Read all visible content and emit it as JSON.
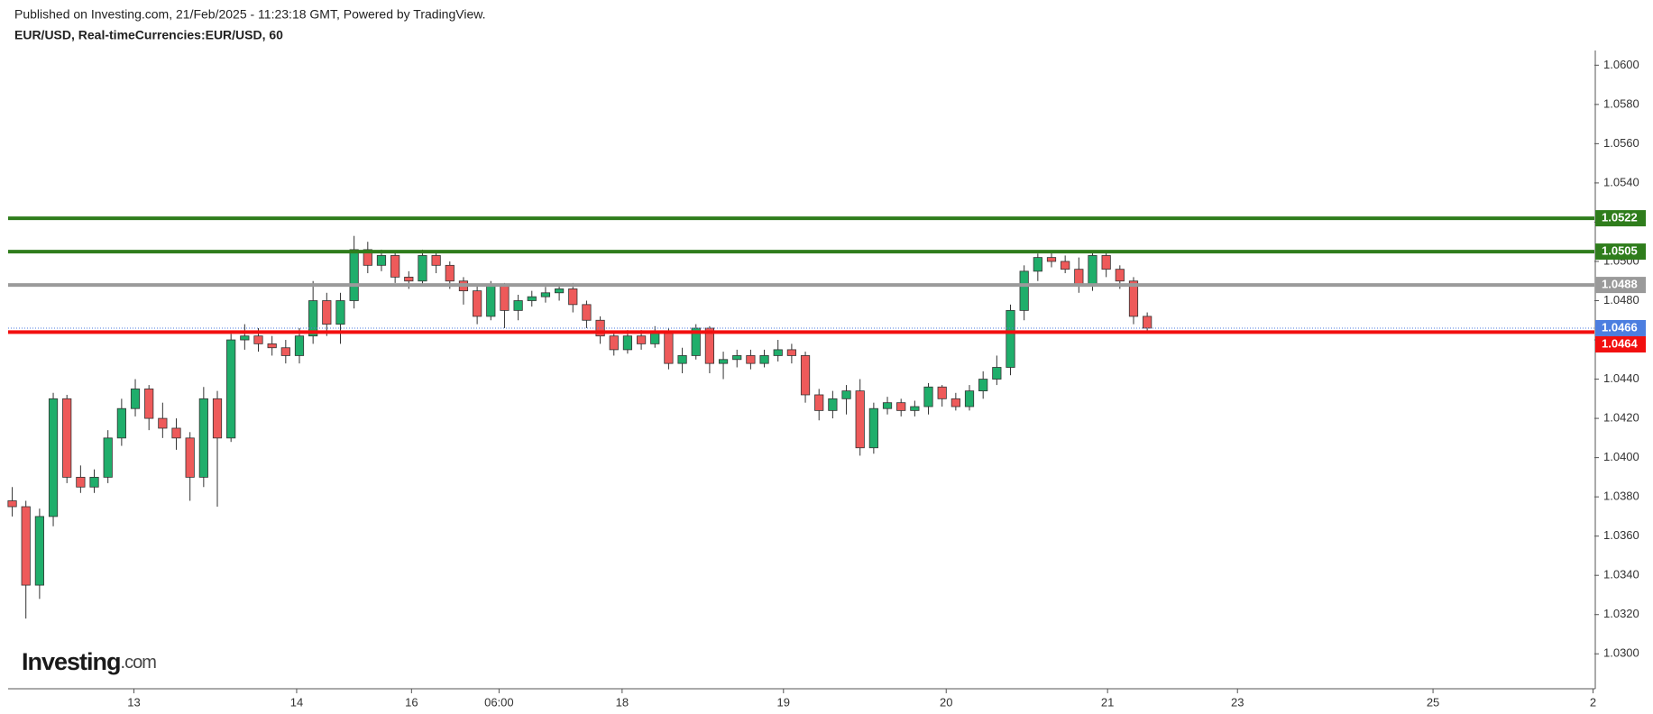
{
  "header": {
    "published": "Published on Investing.com, 21/Feb/2025 - 11:23:18 GMT, Powered by TradingView.",
    "symbol": "EUR/USD, Real-timeCurrencies:EUR/USD, 60"
  },
  "logo": [
    "Investing",
    ".com"
  ],
  "chart_data": {
    "type": "candlestick",
    "up_color": "#1fae6b",
    "down_color": "#ee5a5a",
    "open": [
      1.0378,
      1.0375,
      1.0335,
      1.037,
      1.043,
      1.039,
      1.0385,
      1.039,
      1.041,
      1.0425,
      1.0435,
      1.042,
      1.0415,
      1.041,
      1.039,
      1.043,
      1.041,
      1.046,
      1.0462,
      1.0458,
      1.0456,
      1.0452,
      1.0462,
      1.048,
      1.0468,
      1.048,
      1.0506,
      1.0498,
      1.0503,
      1.0492,
      1.049,
      1.0503,
      1.0498,
      1.049,
      1.0485,
      1.0472,
      1.0488,
      1.0475,
      1.048,
      1.0482,
      1.0484,
      1.0486,
      1.0478,
      1.047,
      1.0462,
      1.0455,
      1.0462,
      1.0458,
      1.0464,
      1.0448,
      1.0452,
      1.0466,
      1.0448,
      1.045,
      1.0452,
      1.0448,
      1.0452,
      1.0455,
      1.0452,
      1.0432,
      1.0424,
      1.043,
      1.0434,
      1.0405,
      1.0425,
      1.0428,
      1.0424,
      1.0426,
      1.0436,
      1.043,
      1.0426,
      1.0434,
      1.044,
      1.0446,
      1.0475,
      1.0495,
      1.0502,
      1.05,
      1.0496,
      1.0488,
      1.0503,
      1.0496,
      1.049,
      1.0472
    ],
    "high": [
      1.0385,
      1.0378,
      1.0374,
      1.0433,
      1.0432,
      1.0396,
      1.0394,
      1.0414,
      1.043,
      1.044,
      1.0437,
      1.0428,
      1.042,
      1.0413,
      1.0436,
      1.0434,
      1.0463,
      1.0468,
      1.0466,
      1.0462,
      1.046,
      1.0466,
      1.049,
      1.0484,
      1.0484,
      1.0513,
      1.051,
      1.0506,
      1.0505,
      1.0495,
      1.0506,
      1.0505,
      1.05,
      1.0492,
      1.0488,
      1.049,
      1.0489,
      1.0483,
      1.0485,
      1.0487,
      1.0488,
      1.0489,
      1.048,
      1.0472,
      1.0464,
      1.0465,
      1.0465,
      1.0467,
      1.0466,
      1.0456,
      1.0468,
      1.0467,
      1.0454,
      1.0455,
      1.0455,
      1.0455,
      1.046,
      1.0458,
      1.0454,
      1.0435,
      1.0434,
      1.0437,
      1.044,
      1.0428,
      1.0431,
      1.043,
      1.0429,
      1.0438,
      1.0437,
      1.0433,
      1.0437,
      1.0444,
      1.0452,
      1.0478,
      1.0498,
      1.0504,
      1.0505,
      1.0503,
      1.0502,
      1.0505,
      1.0505,
      1.0498,
      1.0492,
      1.0474
    ],
    "low": [
      1.037,
      1.0318,
      1.0328,
      1.0365,
      1.0387,
      1.0382,
      1.0382,
      1.0387,
      1.0406,
      1.0421,
      1.0414,
      1.041,
      1.0404,
      1.0378,
      1.0385,
      1.0375,
      1.0408,
      1.0455,
      1.0454,
      1.0452,
      1.0448,
      1.0448,
      1.0458,
      1.0462,
      1.0458,
      1.0476,
      1.0494,
      1.0495,
      1.0489,
      1.0486,
      1.0488,
      1.0494,
      1.0486,
      1.0478,
      1.0468,
      1.047,
      1.0466,
      1.047,
      1.0477,
      1.0479,
      1.048,
      1.0474,
      1.0466,
      1.0458,
      1.0452,
      1.0453,
      1.0455,
      1.0456,
      1.0445,
      1.0443,
      1.045,
      1.0443,
      1.044,
      1.0446,
      1.0445,
      1.0446,
      1.0449,
      1.0448,
      1.0428,
      1.0419,
      1.042,
      1.0422,
      1.0401,
      1.0402,
      1.0422,
      1.0421,
      1.0421,
      1.0422,
      1.0426,
      1.0424,
      1.0424,
      1.043,
      1.0437,
      1.0442,
      1.047,
      1.049,
      1.0497,
      1.0494,
      1.0484,
      1.0485,
      1.0492,
      1.0486,
      1.0468,
      1.0464
    ],
    "close": [
      1.0375,
      1.0335,
      1.037,
      1.043,
      1.039,
      1.0385,
      1.039,
      1.041,
      1.0425,
      1.0435,
      1.042,
      1.0415,
      1.041,
      1.039,
      1.043,
      1.041,
      1.046,
      1.0462,
      1.0458,
      1.0456,
      1.0452,
      1.0462,
      1.048,
      1.0468,
      1.048,
      1.0506,
      1.0498,
      1.0503,
      1.0492,
      1.049,
      1.0503,
      1.0498,
      1.049,
      1.0485,
      1.0472,
      1.0488,
      1.0475,
      1.048,
      1.0482,
      1.0484,
      1.0486,
      1.0478,
      1.047,
      1.0462,
      1.0455,
      1.0462,
      1.0458,
      1.0464,
      1.0448,
      1.0452,
      1.0466,
      1.0448,
      1.045,
      1.0452,
      1.0448,
      1.0452,
      1.0455,
      1.0452,
      1.0432,
      1.0424,
      1.043,
      1.0434,
      1.0405,
      1.0425,
      1.0428,
      1.0424,
      1.0426,
      1.0436,
      1.043,
      1.0426,
      1.0434,
      1.044,
      1.0446,
      1.0475,
      1.0495,
      1.0502,
      1.05,
      1.0496,
      1.0488,
      1.0503,
      1.0496,
      1.049,
      1.0472,
      1.0466
    ],
    "ylim": [
      1.02822,
      1.06075
    ],
    "yticks": [
      {
        "value": 1.03,
        "label": "1.0300"
      },
      {
        "value": 1.032,
        "label": "1.0320"
      },
      {
        "value": 1.034,
        "label": "1.0340"
      },
      {
        "value": 1.036,
        "label": "1.0360"
      },
      {
        "value": 1.038,
        "label": "1.0380"
      },
      {
        "value": 1.04,
        "label": "1.0400"
      },
      {
        "value": 1.042,
        "label": "1.0420"
      },
      {
        "value": 1.044,
        "label": "1.0440"
      },
      {
        "value": 1.046,
        "label": "1.0460"
      },
      {
        "value": 1.048,
        "label": "1.0480"
      },
      {
        "value": 1.05,
        "label": "1.0500"
      },
      {
        "value": 1.052,
        "label": "1.0520"
      },
      {
        "value": 1.054,
        "label": "1.0540"
      },
      {
        "value": 1.056,
        "label": "1.0560"
      },
      {
        "value": 1.058,
        "label": "1.0580"
      },
      {
        "value": 1.06,
        "label": "1.0600"
      }
    ],
    "xlim": [
      -0.3,
      115.7
    ],
    "xticks": [
      {
        "value": 8.9,
        "label": "13"
      },
      {
        "value": 20.8,
        "label": "14"
      },
      {
        "value": 29.2,
        "label": "16"
      },
      {
        "value": 35.6,
        "label": "06:00"
      },
      {
        "value": 44.6,
        "label": "18"
      },
      {
        "value": 56.4,
        "label": "19"
      },
      {
        "value": 68.3,
        "label": "20"
      },
      {
        "value": 80.1,
        "label": "21"
      },
      {
        "value": 89.6,
        "label": "23"
      },
      {
        "value": 103.9,
        "label": "25"
      },
      {
        "value": 115.6,
        "label": "2"
      }
    ],
    "levels": [
      {
        "value": 1.0522,
        "label": "1.0522",
        "color": "#2f7d1c"
      },
      {
        "value": 1.0505,
        "label": "1.0505",
        "color": "#2f7d1c"
      },
      {
        "value": 1.0488,
        "label": "1.0488",
        "color": "#9a9a9a"
      },
      {
        "value": 1.0464,
        "label": "1.0464",
        "color": "#f20f0f"
      }
    ],
    "last_price": {
      "value": 1.0466,
      "label": "1.0466",
      "color": "#4c7ee0"
    }
  }
}
